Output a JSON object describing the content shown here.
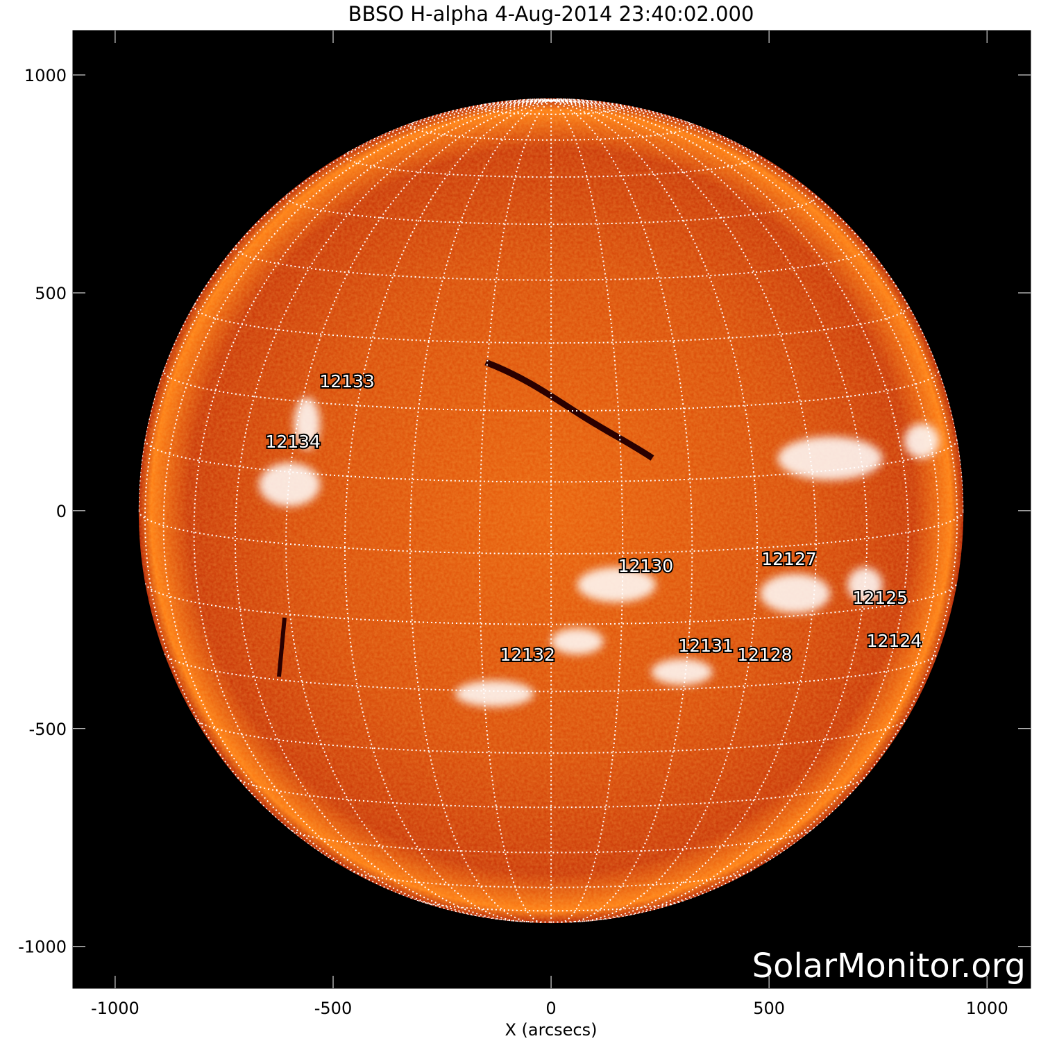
{
  "title": "BBSO H-alpha  4-Aug-2014 23:40:02.000",
  "watermark": "SolarMonitor.org",
  "xaxis": {
    "label": "X (arcsecs)",
    "range": [
      -1097,
      1100
    ],
    "ticks": [
      "-1000",
      "-500",
      "0",
      "500",
      "1000"
    ],
    "tick_values": [
      -1000,
      -500,
      0,
      500,
      1000
    ]
  },
  "yaxis": {
    "label": "",
    "range": [
      -1096,
      1102
    ],
    "ticks": [
      "1000",
      "500",
      "0",
      "-500",
      "-1000"
    ],
    "tick_values": [
      1000,
      500,
      0,
      -500,
      -1000
    ]
  },
  "sun": {
    "radius_arcsec": 946,
    "grid_spacing_deg": 10,
    "b0_deg": 6
  },
  "colors": {
    "sun_core": "#ff7a10",
    "sun_limb": "#b01800",
    "plage": "#ffffff",
    "background": "#000000"
  },
  "active_regions": [
    {
      "label": "12133",
      "x": -468,
      "y": 298
    },
    {
      "label": "12134",
      "x": -592,
      "y": 159
    },
    {
      "label": "12130",
      "x": 217,
      "y": -126
    },
    {
      "label": "12127",
      "x": 546,
      "y": -110
    },
    {
      "label": "12125",
      "x": 755,
      "y": -199
    },
    {
      "label": "12124",
      "x": 787,
      "y": -298
    },
    {
      "label": "12131",
      "x": 355,
      "y": -309
    },
    {
      "label": "12128",
      "x": 490,
      "y": -330
    },
    {
      "label": "12132",
      "x": -54,
      "y": -330
    }
  ]
}
